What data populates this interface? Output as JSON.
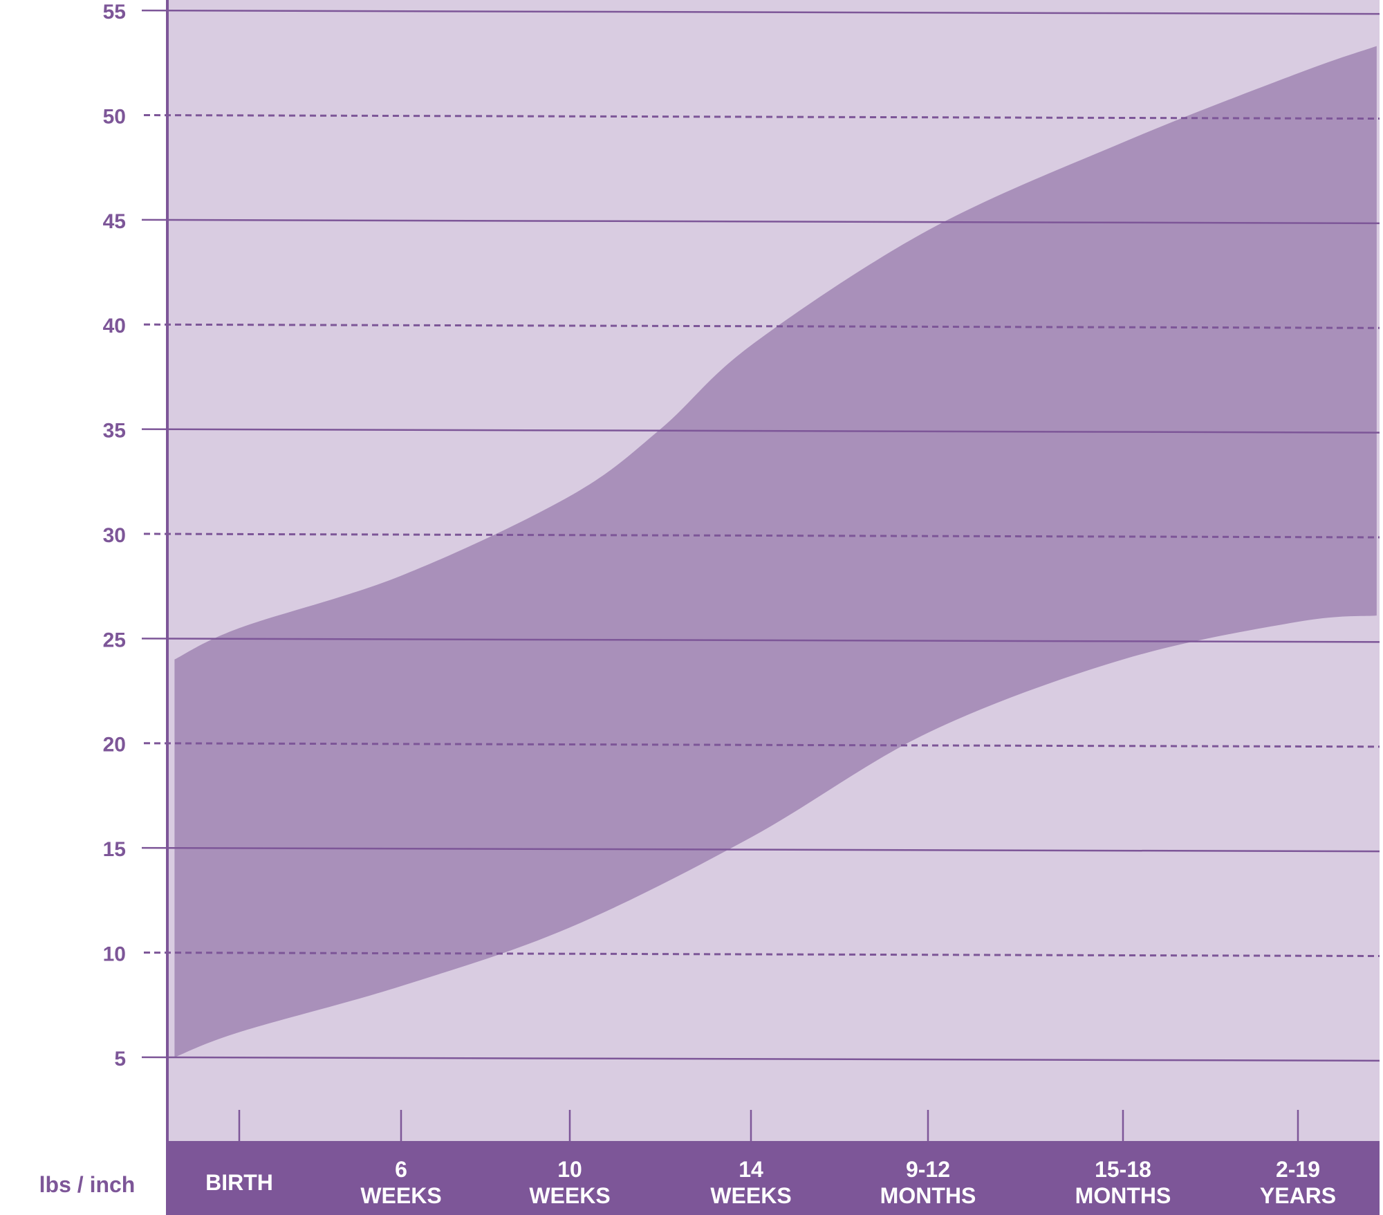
{
  "colors": {
    "plot_background": "#d9cce1",
    "band_fill": "#a990ba",
    "accent": "#7d5698",
    "axis_label_text": "#7d5698",
    "bar_label_text": "#ffffff",
    "page_background": "#ffffff"
  },
  "chart_data": {
    "type": "area",
    "title": "",
    "xlabel": "",
    "ylabel": "",
    "unit_label": "lbs / inch",
    "x_categories": [
      {
        "line1": "BIRTH",
        "line2": ""
      },
      {
        "line1": "6",
        "line2": "WEEKS"
      },
      {
        "line1": "10",
        "line2": "WEEKS"
      },
      {
        "line1": "14",
        "line2": "WEEKS"
      },
      {
        "line1": "9-12",
        "line2": "MONTHS"
      },
      {
        "line1": "15-18",
        "line2": "MONTHS"
      },
      {
        "line1": "2-19",
        "line2": "YEARS"
      }
    ],
    "y_ticks": [
      5,
      10,
      15,
      20,
      25,
      30,
      35,
      40,
      45,
      50,
      55
    ],
    "ylim": [
      1,
      55.5
    ],
    "gridlines": {
      "solid": [
        5,
        15,
        25,
        35,
        45,
        55
      ],
      "dashed": [
        10,
        20,
        30,
        40,
        50
      ]
    },
    "band": {
      "upper": [
        {
          "x": -0.4,
          "y": 24.0
        },
        {
          "x": 0.0,
          "y": 25.5
        },
        {
          "x": 1.0,
          "y": 28.0
        },
        {
          "x": 2.0,
          "y": 31.8
        },
        {
          "x": 2.5,
          "y": 35.0
        },
        {
          "x": 3.0,
          "y": 39.0
        },
        {
          "x": 4.0,
          "y": 44.5
        },
        {
          "x": 5.0,
          "y": 48.7
        },
        {
          "x": 6.0,
          "y": 52.0
        },
        {
          "x": 6.45,
          "y": 53.3
        }
      ],
      "lower": [
        {
          "x": -0.4,
          "y": 5.0
        },
        {
          "x": 0.0,
          "y": 6.2
        },
        {
          "x": 1.0,
          "y": 8.4
        },
        {
          "x": 2.0,
          "y": 11.2
        },
        {
          "x": 3.0,
          "y": 15.5
        },
        {
          "x": 4.0,
          "y": 20.5
        },
        {
          "x": 5.0,
          "y": 24.0
        },
        {
          "x": 6.0,
          "y": 25.8
        },
        {
          "x": 6.45,
          "y": 26.1
        }
      ]
    }
  }
}
